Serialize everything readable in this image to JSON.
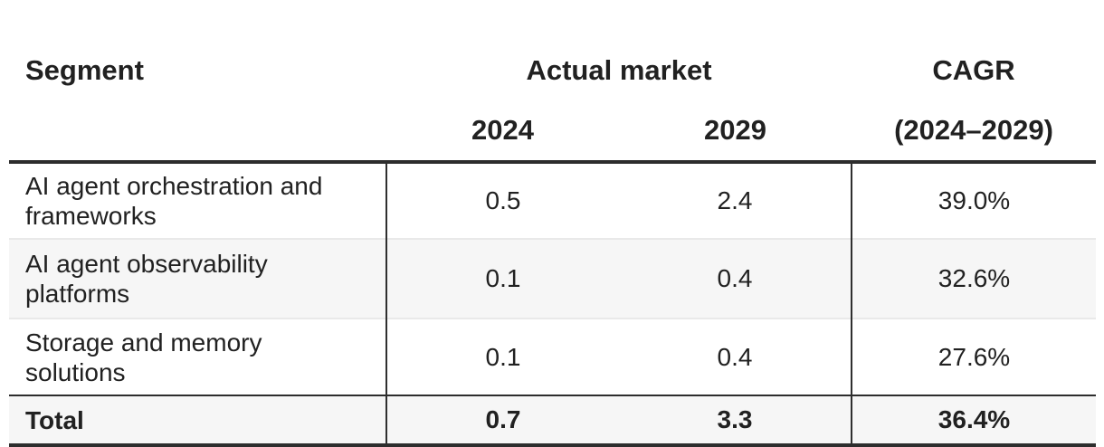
{
  "chart_data": {
    "type": "table",
    "title": "",
    "column_group": {
      "label": "Actual market",
      "columns": [
        "2024",
        "2029"
      ]
    },
    "columns": [
      "Segment",
      "2024",
      "2029",
      "CAGR (2024–2029)"
    ],
    "rows": [
      {
        "segment": "AI agent orchestration and frameworks",
        "y2024": 0.5,
        "y2029": 2.4,
        "cagr_pct": 39.0
      },
      {
        "segment": "AI agent observability platforms",
        "y2024": 0.1,
        "y2029": 0.4,
        "cagr_pct": 32.6
      },
      {
        "segment": "Storage and memory solutions",
        "y2024": 0.1,
        "y2029": 0.4,
        "cagr_pct": 27.6
      }
    ],
    "total_row": {
      "segment": "Total",
      "y2024": 0.7,
      "y2029": 3.3,
      "cagr_pct": 36.4
    }
  },
  "table": {
    "header": {
      "segment": "Segment",
      "actual_market": "Actual market",
      "cagr": "CAGR",
      "year_2024": "2024",
      "year_2029": "2029",
      "cagr_range": "(2024–2029)"
    },
    "rows": [
      {
        "segment_line1": "AI agent orchestration and",
        "segment_line2": "frameworks",
        "y2024": "0.5",
        "y2029": "2.4",
        "cagr": "39.0%"
      },
      {
        "segment_line1": "AI agent observability",
        "segment_line2": "platforms",
        "y2024": "0.1",
        "y2029": "0.4",
        "cagr": "32.6%"
      },
      {
        "segment_line1": "Storage and memory",
        "segment_line2": "solutions",
        "y2024": "0.1",
        "y2029": "0.4",
        "cagr": "27.6%"
      }
    ],
    "total": {
      "segment": "Total",
      "y2024": "0.7",
      "y2029": "3.3",
      "cagr": "36.4%"
    }
  },
  "colors": {
    "text": "#212121",
    "border_dark": "#2d2d2d",
    "row_alt_background": "#f6f6f6",
    "row_separator": "#e9e9e9"
  }
}
